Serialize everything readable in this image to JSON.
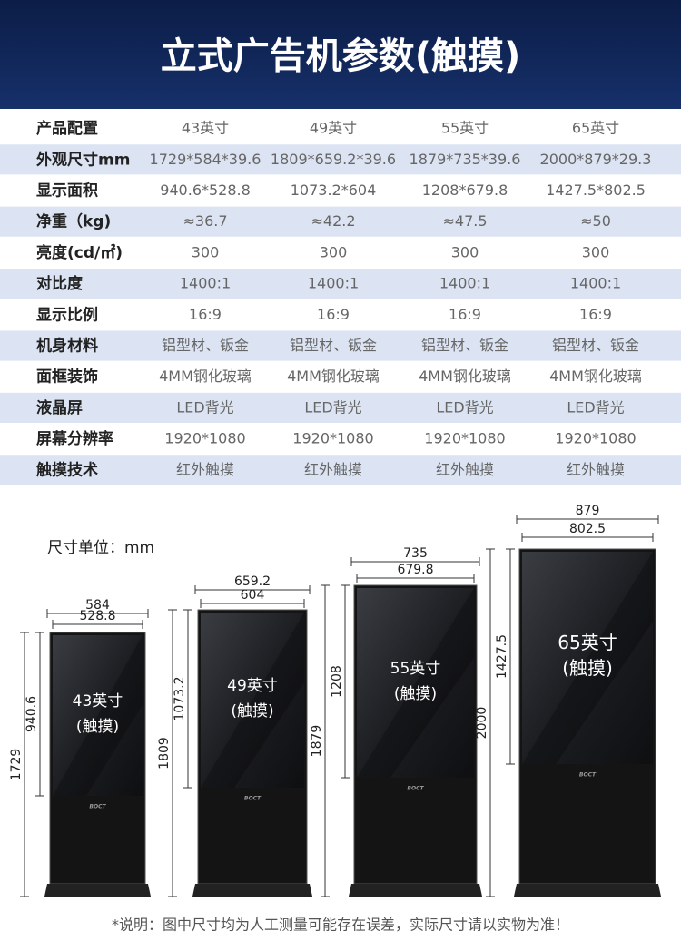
{
  "header": {
    "title": "立式广告机参数(触摸)"
  },
  "table": {
    "rows": [
      [
        "产品配置",
        "43英寸",
        "49英寸",
        "55英寸",
        "65英寸"
      ],
      [
        "外观尺寸mm",
        "1729*584*39.6",
        "1809*659.2*39.6",
        "1879*735*39.6",
        "2000*879*29.3"
      ],
      [
        "显示面积",
        "940.6*528.8",
        "1073.2*604",
        "1208*679.8",
        "1427.5*802.5"
      ],
      [
        "净重（kg)",
        "≈36.7",
        "≈42.2",
        "≈47.5",
        "≈50"
      ],
      [
        "亮度(cd/㎡)",
        "300",
        "300",
        "300",
        "300"
      ],
      [
        "对比度",
        "1400:1",
        "1400:1",
        "1400:1",
        "1400:1"
      ],
      [
        "显示比例",
        "16:9",
        "16:9",
        "16:9",
        "16:9"
      ],
      [
        "机身材料",
        "铝型材、钣金",
        "铝型材、钣金",
        "铝型材、钣金",
        "铝型材、钣金"
      ],
      [
        "面框装饰",
        "4MM钢化玻璃",
        "4MM钢化玻璃",
        "4MM钢化玻璃",
        "4MM钢化玻璃"
      ],
      [
        "液晶屏",
        "LED背光",
        "LED背光",
        "LED背光",
        "LED背光"
      ],
      [
        "屏幕分辨率",
        "1920*1080",
        "1920*1080",
        "1920*1080",
        "1920*1080"
      ],
      [
        "触摸技术",
        "红外触摸",
        "红外触摸",
        "红外触摸",
        "红外触摸"
      ]
    ]
  },
  "diagram": {
    "unit_note": "尺寸单位：mm",
    "models": [
      {
        "width_total": "584",
        "width_screen": "528.8",
        "height_screen": "940.6",
        "height_total": "1729",
        "size": "43英寸",
        "touch": "(触摸)",
        "brand": "BOCT"
      },
      {
        "width_total": "659.2",
        "width_screen": "604",
        "height_screen": "1073.2",
        "height_total": "1809",
        "size": "49英寸",
        "touch": "(触摸)",
        "brand": "BOCT"
      },
      {
        "width_total": "735",
        "width_screen": "679.8",
        "height_screen": "1208",
        "height_total": "1879",
        "size": "55英寸",
        "touch": "(触摸)",
        "brand": "BOCT"
      },
      {
        "width_total": "879",
        "width_screen": "802.5",
        "height_screen": "1427.5",
        "height_total": "2000",
        "size": "65英寸",
        "touch": "(触摸)",
        "brand": "BOCT"
      }
    ]
  },
  "footer": {
    "note": "*说明：图中尺寸均为人工测量可能存在误差，实际尺寸请以实物为准！"
  }
}
